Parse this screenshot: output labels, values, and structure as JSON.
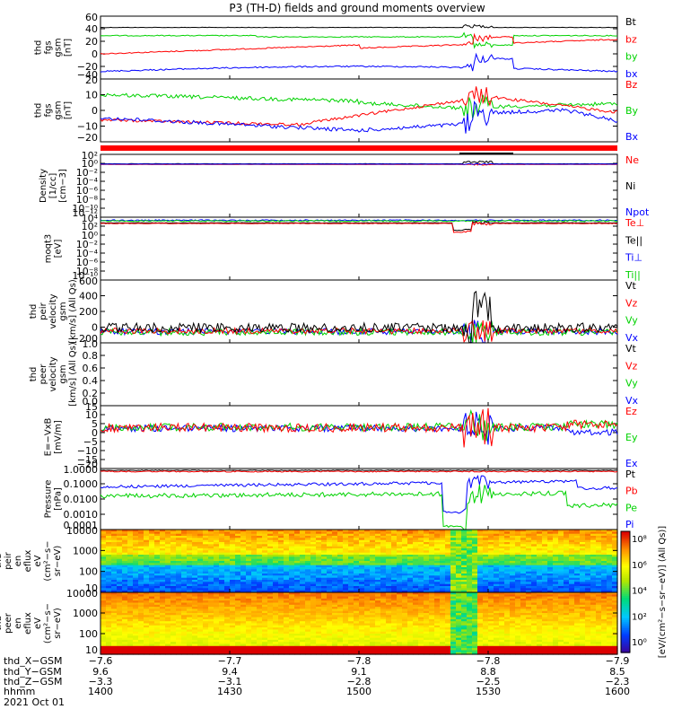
{
  "title": "P3 (TH-D) fields and ground moments overview",
  "colors": {
    "black": "#000000",
    "red": "#ff0000",
    "green": "#00d200",
    "blue": "#0000ff"
  },
  "chart_data": {
    "type": "line",
    "panels": [
      {
        "id": "fgs-gsm",
        "ylabel": [
          "thd",
          "fgs",
          "gsm",
          "[nT]"
        ],
        "yticks": [
          "60",
          "40",
          "20",
          "0",
          "−20",
          "−40"
        ],
        "legend": [
          {
            "name": "Bt",
            "color": "black"
          },
          {
            "name": "bz",
            "color": "red"
          },
          {
            "name": "by",
            "color": "green"
          },
          {
            "name": "bx",
            "color": "blue"
          }
        ]
      },
      {
        "id": "fgs-gsm-zoom",
        "ylabel": [
          "thd",
          "fgs",
          "gsm",
          "[nT]"
        ],
        "yticks": [
          "20",
          "10",
          "0",
          "−10",
          "−20"
        ],
        "legend": [
          {
            "name": "Bz",
            "color": "red"
          },
          {
            "name": "By",
            "color": "green"
          },
          {
            "name": "Bx",
            "color": "blue"
          }
        ]
      },
      {
        "id": "density",
        "ylabel": [
          "Density",
          "[1/cc]",
          "[cm−3]"
        ],
        "yticks": [
          "10²",
          "10⁰",
          "10⁻²",
          "10⁻⁴",
          "10⁻⁶",
          "10⁻⁸",
          "10⁻¹⁰",
          "10⁻¹²"
        ],
        "legend": [
          {
            "name": "Ne",
            "color": "red"
          },
          {
            "name": "Ni",
            "color": "black"
          },
          {
            "name": "Npot",
            "color": "blue"
          }
        ]
      },
      {
        "id": "temperature",
        "ylabel": [
          "moqt3",
          "[eV]"
        ],
        "yticks": [
          "10⁴",
          "10²",
          "10⁰",
          "10⁻²",
          "10⁻⁴",
          "10⁻⁶",
          "10⁻⁸",
          "10⁻¹⁰"
        ],
        "legend": [
          {
            "name": "Te⊥",
            "color": "red"
          },
          {
            "name": "Te||",
            "color": "black"
          },
          {
            "name": "Ti⊥",
            "color": "blue"
          },
          {
            "name": "Ti||",
            "color": "green"
          }
        ]
      },
      {
        "id": "peir-velocity",
        "ylabel": [
          "thd",
          "peir",
          "velocity",
          "gsm",
          "[km/s] (All Qs)"
        ],
        "yticks": [
          "600",
          "400",
          "200",
          "0",
          "−200"
        ],
        "legend": [
          {
            "name": "Vt",
            "color": "black"
          },
          {
            "name": "Vz",
            "color": "red"
          },
          {
            "name": "Vy",
            "color": "green"
          },
          {
            "name": "Vx",
            "color": "blue"
          }
        ]
      },
      {
        "id": "peer-velocity",
        "ylabel": [
          "thd",
          "peer",
          "velocity",
          "gsm",
          "[km/s] (All Qs)"
        ],
        "yticks": [
          "1.0",
          "0.8",
          "0.6",
          "0.4",
          "0.2",
          "0.0"
        ],
        "legend": [
          {
            "name": "Vt",
            "color": "black"
          },
          {
            "name": "Vz",
            "color": "red"
          },
          {
            "name": "Vy",
            "color": "green"
          },
          {
            "name": "Vx",
            "color": "blue"
          }
        ]
      },
      {
        "id": "efield",
        "ylabel": [
          "E=−VxB",
          "[mV/m]"
        ],
        "yticks": [
          "15",
          "10",
          "5",
          "0",
          "−5",
          "−10",
          "−15",
          "−20"
        ],
        "legend": [
          {
            "name": "Ez",
            "color": "red"
          },
          {
            "name": "Ey",
            "color": "green"
          },
          {
            "name": "Ex",
            "color": "blue"
          }
        ]
      },
      {
        "id": "pressure",
        "ylabel": [
          "Pressure",
          "[nPa]"
        ],
        "yticks": [
          "1.0000",
          "0.1000",
          "0.0100",
          "0.0010",
          "0.0001"
        ],
        "legend": [
          {
            "name": "Pt",
            "color": "black"
          },
          {
            "name": "Pb",
            "color": "red"
          },
          {
            "name": "Pe",
            "color": "green"
          },
          {
            "name": "Pi",
            "color": "blue"
          }
        ]
      },
      {
        "id": "peir-eflux",
        "ylabel": [
          "thd",
          "peir",
          "en",
          "eflux",
          "eV",
          "(cm²−s−",
          "sr−eV)"
        ],
        "yticks": [
          "10000",
          "1000",
          "100",
          "10"
        ]
      },
      {
        "id": "peer-eflux",
        "ylabel": [
          "thd",
          "peer",
          "en",
          "eflux",
          "eV",
          "(cm²−s−",
          "sr−eV)"
        ],
        "yticks": [
          "10000",
          "1000",
          "100",
          "10"
        ]
      }
    ],
    "colorbar": {
      "ticks": [
        "10⁸",
        "10⁶",
        "10⁴",
        "10²",
        "10⁰"
      ],
      "label": "[eV/(cm²−s−sr−eV)] (All Qs)]"
    },
    "x_axis": {
      "row_labels": [
        "thd_X−GSM",
        "thd_Y−GSM",
        "thd_Z−GSM",
        "hhmm",
        "2021 Oct 01"
      ],
      "ticks": [
        {
          "x": "−7.6",
          "y": "9.6",
          "z": "−3.3",
          "hhmm": "1400"
        },
        {
          "x": "−7.7",
          "y": "9.4",
          "z": "−3.1",
          "hhmm": "1430"
        },
        {
          "x": "−7.8",
          "y": "9.1",
          "z": "−2.8",
          "hhmm": "1500"
        },
        {
          "x": "−7.8",
          "y": "8.8",
          "z": "−2.5",
          "hhmm": "1530"
        },
        {
          "x": "−7.9",
          "y": "8.5",
          "z": "−2.3",
          "hhmm": "1600"
        }
      ]
    }
  }
}
